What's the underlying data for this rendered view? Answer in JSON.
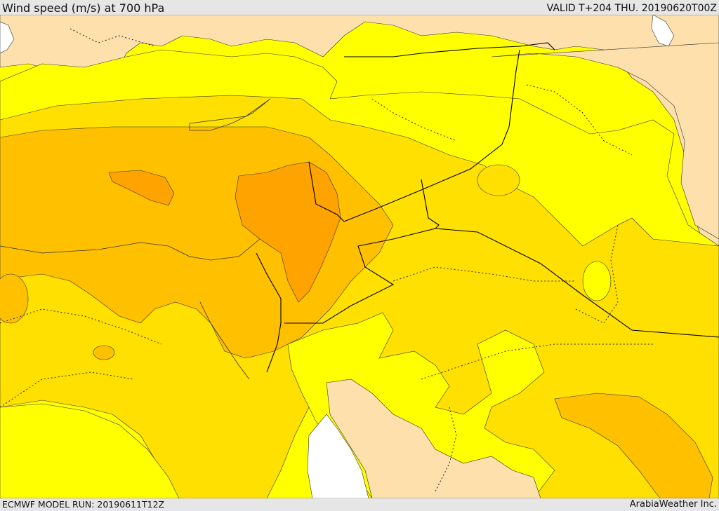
{
  "header": {
    "title": "Wind speed (m/s) at 700 hPa",
    "valid_time": "VALID T+204 THU. 20190620T00Z"
  },
  "footer": {
    "model_run": "ECMWF MODEL RUN: 20190611T12Z",
    "credit": "ArabiaWeather Inc."
  },
  "colors": {
    "land_low_wind": "#fde0ab",
    "band_yellow": "#ffff00",
    "band_gold": "#ffe000",
    "band_amber": "#ffc000",
    "band_orange": "#ffa300",
    "sea_white": "#ffffff",
    "border_line": "#000000",
    "contour_line": "#333333"
  }
}
